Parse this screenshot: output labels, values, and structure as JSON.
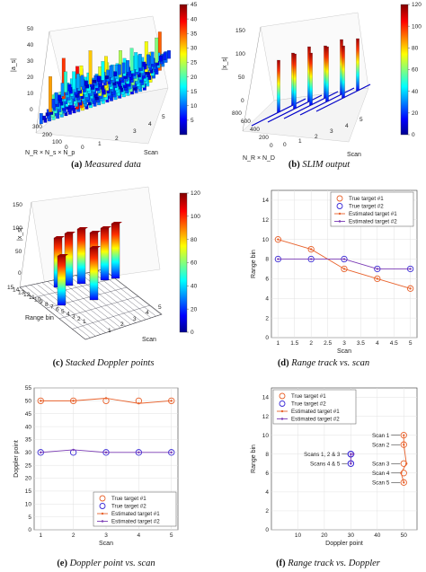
{
  "captions": [
    {
      "label": "(a)",
      "text": "Measured data"
    },
    {
      "label": "(b)",
      "text": "SLIM output"
    },
    {
      "label": "(c)",
      "text": "Stacked Doppler points"
    },
    {
      "label": "(d)",
      "text": "Range track vs. scan"
    },
    {
      "label": "(e)",
      "text": "Doppler point vs. scan"
    },
    {
      "label": "(f)",
      "text": "Range track vs. Doppler"
    }
  ],
  "colors": {
    "target1": "#e8622c",
    "target2": "#3a2ad6",
    "estimated1": "#e8622c",
    "estimated2": "#7a3ab5"
  },
  "chart_data": [
    {
      "type": "surface3d",
      "panel": "a",
      "zlabel": "|a_s|",
      "xlabel": "Scan",
      "ylabel": "N_R × N_s × N_p",
      "zticks": [
        "0",
        "10",
        "20",
        "30",
        "40",
        "50"
      ],
      "yticks": [
        "0",
        "100",
        "200",
        "300"
      ],
      "xticks": [
        "0",
        "1",
        "2",
        "3",
        "4",
        "5"
      ],
      "colorbar": {
        "min": 0,
        "max": 45,
        "ticks": [
          "5",
          "10",
          "15",
          "20",
          "25",
          "30",
          "35",
          "40",
          "45"
        ]
      }
    },
    {
      "type": "surface3d",
      "panel": "b",
      "zlabel": "|x_s|",
      "xlabel": "Scan",
      "ylabel": "N_R × N_D",
      "zticks": [
        "0",
        "50",
        "100",
        "150"
      ],
      "yticks": [
        "0",
        "200",
        "400",
        "600",
        "800"
      ],
      "xticks": [
        "0",
        "1",
        "2",
        "3",
        "4",
        "5"
      ],
      "colorbar": {
        "min": 0,
        "max": 120,
        "ticks": [
          "0",
          "20",
          "40",
          "60",
          "80",
          "100",
          "120"
        ]
      }
    },
    {
      "type": "surface3d",
      "panel": "c",
      "zlabel": "|x_s|",
      "xlabel": "Scan",
      "ylabel": "Range bin",
      "zticks": [
        "0",
        "50",
        "100",
        "150"
      ],
      "yticks": [
        "1",
        "2",
        "3",
        "4",
        "5",
        "6",
        "7",
        "8",
        "9",
        "10",
        "11",
        "12",
        "13",
        "14",
        "15"
      ],
      "xticks": [
        "1",
        "2",
        "3",
        "4",
        "5"
      ],
      "colorbar": {
        "min": 0,
        "max": 120,
        "ticks": [
          "0",
          "20",
          "40",
          "60",
          "80",
          "100",
          "120"
        ]
      }
    },
    {
      "type": "line",
      "panel": "d",
      "xlabel": "Scan",
      "ylabel": "Range bin",
      "xlim": [
        0.8,
        5.2
      ],
      "ylim": [
        0,
        15
      ],
      "xticks": [
        "1",
        "1.5",
        "2",
        "2.5",
        "3",
        "3.5",
        "4",
        "4.5",
        "5"
      ],
      "yticks": [
        "0",
        "2",
        "4",
        "6",
        "8",
        "10",
        "12",
        "14"
      ],
      "x": [
        1,
        2,
        3,
        4,
        5
      ],
      "series": [
        {
          "name": "True target #1",
          "style": "circle",
          "values": [
            10,
            9,
            7,
            6,
            5
          ]
        },
        {
          "name": "True target #2",
          "style": "circle",
          "values": [
            8,
            8,
            8,
            7,
            7
          ]
        },
        {
          "name": "Estimated target #1",
          "style": "line",
          "values": [
            10,
            9,
            7,
            6,
            5
          ]
        },
        {
          "name": "Estimated target #2",
          "style": "line",
          "values": [
            8,
            8,
            8,
            7,
            7
          ]
        }
      ],
      "legend": "top-right"
    },
    {
      "type": "line",
      "panel": "e",
      "xlabel": "Scan",
      "ylabel": "Doppler point",
      "xlim": [
        0.8,
        5.2
      ],
      "ylim": [
        0,
        55
      ],
      "xticks": [
        "1",
        "2",
        "3",
        "4",
        "5"
      ],
      "yticks": [
        "0",
        "5",
        "10",
        "15",
        "20",
        "25",
        "30",
        "35",
        "40",
        "45",
        "50",
        "55"
      ],
      "x": [
        1,
        2,
        3,
        4,
        5
      ],
      "series": [
        {
          "name": "True target #1",
          "style": "circle",
          "values": [
            50,
            50,
            50,
            50,
            50
          ]
        },
        {
          "name": "True target #2",
          "style": "circle",
          "values": [
            30,
            30,
            30,
            30,
            30
          ]
        },
        {
          "name": "Estimated target #1",
          "style": "line",
          "values": [
            50,
            50,
            51,
            49,
            50
          ]
        },
        {
          "name": "Estimated target #2",
          "style": "line",
          "values": [
            30,
            31,
            30,
            30,
            30
          ]
        }
      ],
      "legend": "bottom-right"
    },
    {
      "type": "scatter",
      "panel": "f",
      "xlabel": "Doppler point",
      "ylabel": "Range bin",
      "xlim": [
        0,
        55
      ],
      "ylim": [
        0,
        15
      ],
      "xticks": [
        "10",
        "20",
        "30",
        "40",
        "50"
      ],
      "yticks": [
        "0",
        "2",
        "4",
        "6",
        "8",
        "10",
        "12",
        "14"
      ],
      "series": [
        {
          "name": "True target #1",
          "style": "circle",
          "x": [
            50,
            50,
            50,
            50,
            50
          ],
          "y": [
            10,
            9,
            7,
            6,
            5
          ]
        },
        {
          "name": "True target #2",
          "style": "circle",
          "x": [
            30,
            30,
            30,
            30,
            30
          ],
          "y": [
            8,
            8,
            8,
            7,
            7
          ]
        },
        {
          "name": "Estimated target #1",
          "style": "line",
          "x": [
            50,
            50,
            51,
            49,
            50
          ],
          "y": [
            10,
            9,
            7,
            6,
            5
          ]
        },
        {
          "name": "Estimated target #2",
          "style": "line",
          "x": [
            30,
            31,
            30,
            30,
            30
          ],
          "y": [
            8,
            8,
            8,
            7,
            7
          ]
        }
      ],
      "annotations": [
        "Scan 1",
        "Scan 2",
        "Scan 3",
        "Scan 4",
        "Scan 5",
        "Scans 1, 2 & 3",
        "Scans 4 & 5"
      ],
      "legend": "top-left"
    }
  ]
}
